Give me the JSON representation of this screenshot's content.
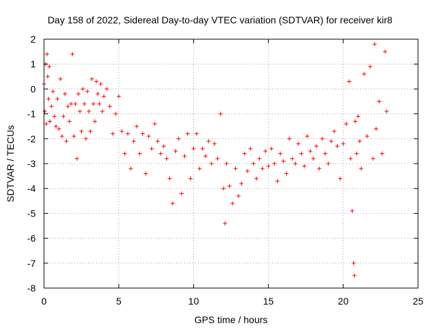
{
  "chart_data": {
    "type": "scatter",
    "title": "Day 158 of 2022, Sidereal Day-to-day VTEC variation (SDTVAR) for receiver kir8",
    "xlabel": "GPS time / hours",
    "ylabel": "SDTVAR / TECUs",
    "xlim": [
      0,
      25
    ],
    "ylim": [
      -8,
      2
    ],
    "xticks": [
      "0",
      "5",
      "10",
      "15",
      "20",
      "25"
    ],
    "yticks": [
      "2",
      "1",
      "0",
      "-1",
      "-2",
      "-3",
      "-4",
      "-5",
      "-6",
      "-7",
      "-8"
    ],
    "grid": true,
    "marker": "+",
    "color": "#ff0000",
    "series": [
      {
        "name": "SDTVAR",
        "points": [
          [
            0.0,
            0.2
          ],
          [
            0.05,
            -0.9
          ],
          [
            0.1,
            1.0
          ],
          [
            0.15,
            -1.4
          ],
          [
            0.2,
            1.4
          ],
          [
            0.25,
            0.5
          ],
          [
            0.3,
            -0.4
          ],
          [
            0.35,
            0.9
          ],
          [
            0.4,
            -1.3
          ],
          [
            0.5,
            -0.7
          ],
          [
            0.6,
            -0.1
          ],
          [
            0.7,
            -1.1
          ],
          [
            0.8,
            -1.5
          ],
          [
            0.9,
            -0.4
          ],
          [
            1.0,
            -1.6
          ],
          [
            1.1,
            0.4
          ],
          [
            1.2,
            -1.9
          ],
          [
            1.3,
            -1.1
          ],
          [
            1.4,
            -0.2
          ],
          [
            1.5,
            -2.1
          ],
          [
            1.6,
            -0.7
          ],
          [
            1.7,
            -1.3
          ],
          [
            1.8,
            -0.6
          ],
          [
            1.9,
            1.4
          ],
          [
            2.0,
            -1.9
          ],
          [
            2.1,
            -0.6
          ],
          [
            2.2,
            -2.8
          ],
          [
            2.3,
            -0.2
          ],
          [
            2.4,
            -0.9
          ],
          [
            2.5,
            -1.7
          ],
          [
            2.6,
            0.0
          ],
          [
            2.7,
            -0.6
          ],
          [
            2.8,
            -2.0
          ],
          [
            2.9,
            -0.1
          ],
          [
            3.0,
            -0.9
          ],
          [
            3.1,
            -1.7
          ],
          [
            3.2,
            0.4
          ],
          [
            3.3,
            -0.6
          ],
          [
            3.4,
            -1.3
          ],
          [
            3.5,
            0.3
          ],
          [
            3.6,
            -0.2
          ],
          [
            3.7,
            -0.6
          ],
          [
            3.8,
            0.2
          ],
          [
            3.9,
            -0.9
          ],
          [
            4.0,
            -0.3
          ],
          [
            4.2,
            0.0
          ],
          [
            4.4,
            -0.7
          ],
          [
            4.6,
            -1.8
          ],
          [
            4.8,
            -1.0
          ],
          [
            5.0,
            -0.3
          ],
          [
            5.2,
            -1.7
          ],
          [
            5.4,
            -2.6
          ],
          [
            5.6,
            -1.8
          ],
          [
            5.8,
            -3.2
          ],
          [
            6.0,
            -2.1
          ],
          [
            6.2,
            -1.5
          ],
          [
            6.4,
            -2.6
          ],
          [
            6.6,
            -1.8
          ],
          [
            6.8,
            -3.4
          ],
          [
            7.0,
            -1.9
          ],
          [
            7.2,
            -2.4
          ],
          [
            7.4,
            -1.4
          ],
          [
            7.6,
            -2.1
          ],
          [
            7.8,
            -2.6
          ],
          [
            8.0,
            -2.3
          ],
          [
            8.2,
            -2.8
          ],
          [
            8.4,
            -3.6
          ],
          [
            8.6,
            -4.6
          ],
          [
            8.8,
            -2.5
          ],
          [
            9.0,
            -2.0
          ],
          [
            9.2,
            -4.2
          ],
          [
            9.4,
            -2.7
          ],
          [
            9.6,
            -1.8
          ],
          [
            9.8,
            -3.6
          ],
          [
            10.0,
            -2.4
          ],
          [
            10.2,
            -1.8
          ],
          [
            10.4,
            -3.2
          ],
          [
            10.6,
            -2.4
          ],
          [
            10.8,
            -2.7
          ],
          [
            11.0,
            -2.1
          ],
          [
            11.2,
            -3.0
          ],
          [
            11.4,
            -2.2
          ],
          [
            11.6,
            -2.8
          ],
          [
            11.8,
            -1.0
          ],
          [
            12.0,
            -4.0
          ],
          [
            12.1,
            -5.4
          ],
          [
            12.2,
            -3.0
          ],
          [
            12.4,
            -3.9
          ],
          [
            12.6,
            -4.6
          ],
          [
            12.8,
            -3.2
          ],
          [
            13.0,
            -4.3
          ],
          [
            13.2,
            -3.8
          ],
          [
            13.4,
            -2.6
          ],
          [
            13.6,
            -3.3
          ],
          [
            13.8,
            -2.4
          ],
          [
            14.0,
            -3.0
          ],
          [
            14.2,
            -3.6
          ],
          [
            14.4,
            -2.8
          ],
          [
            14.6,
            -3.2
          ],
          [
            14.8,
            -2.5
          ],
          [
            15.0,
            -3.1
          ],
          [
            15.2,
            -2.4
          ],
          [
            15.4,
            -3.0
          ],
          [
            15.6,
            -3.7
          ],
          [
            15.8,
            -2.6
          ],
          [
            16.0,
            -2.9
          ],
          [
            16.2,
            -3.4
          ],
          [
            16.4,
            -2.0
          ],
          [
            16.6,
            -2.8
          ],
          [
            16.8,
            -3.0
          ],
          [
            17.0,
            -2.2
          ],
          [
            17.2,
            -2.6
          ],
          [
            17.4,
            -3.1
          ],
          [
            17.6,
            -1.9
          ],
          [
            17.8,
            -2.5
          ],
          [
            18.0,
            -2.8
          ],
          [
            18.2,
            -2.3
          ],
          [
            18.4,
            -3.2
          ],
          [
            18.6,
            -2.0
          ],
          [
            18.8,
            -2.6
          ],
          [
            19.0,
            -3.0
          ],
          [
            19.2,
            -2.1
          ],
          [
            19.4,
            -1.7
          ],
          [
            19.6,
            -2.3
          ],
          [
            19.8,
            -3.6
          ],
          [
            20.0,
            -2.2
          ],
          [
            20.2,
            -1.4
          ],
          [
            20.4,
            0.3
          ],
          [
            20.5,
            -2.8
          ],
          [
            20.6,
            -4.9
          ],
          [
            20.7,
            -7.0
          ],
          [
            20.75,
            -7.5
          ],
          [
            20.8,
            -1.3
          ],
          [
            20.9,
            -2.6
          ],
          [
            21.0,
            -1.1
          ],
          [
            21.1,
            -2.1
          ],
          [
            21.2,
            -3.2
          ],
          [
            21.4,
            0.6
          ],
          [
            21.6,
            -1.9
          ],
          [
            21.8,
            0.9
          ],
          [
            22.0,
            -2.8
          ],
          [
            22.1,
            1.8
          ],
          [
            22.2,
            -1.6
          ],
          [
            22.4,
            -0.5
          ],
          [
            22.6,
            -2.6
          ],
          [
            22.8,
            1.5
          ],
          [
            22.9,
            -0.9
          ]
        ]
      }
    ]
  }
}
